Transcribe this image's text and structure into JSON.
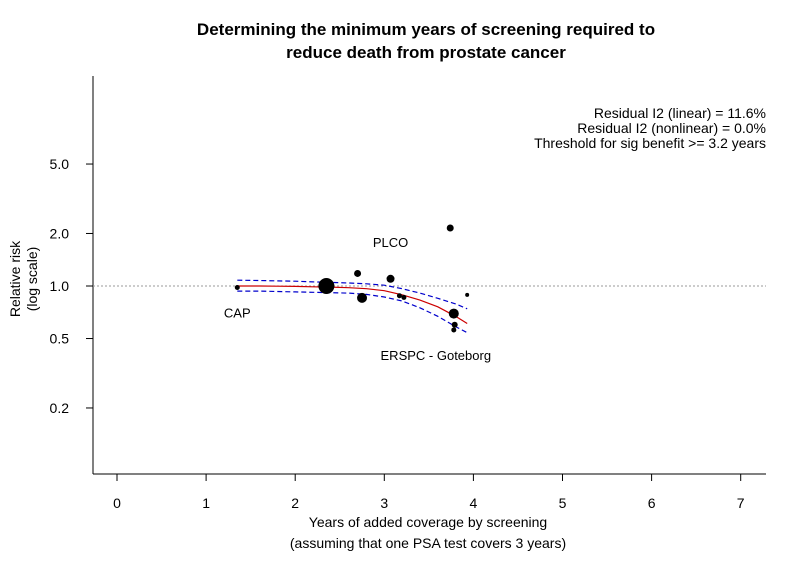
{
  "chart_data": {
    "type": "scatter",
    "title": [
      "Determining the minimum years of screening required to",
      "reduce death from prostate cancer"
    ],
    "xlabel": [
      "Years of added coverage by screening",
      "(assuming that one PSA test covers 3 years)"
    ],
    "ylabel": [
      "Relative risk",
      "(log scale)"
    ],
    "xlim": [
      -0.25,
      7.3
    ],
    "ylim": [
      0.18,
      6.3
    ],
    "yscale": "log",
    "xticks": [
      0,
      1,
      2,
      3,
      4,
      5,
      6,
      7
    ],
    "yticks": [
      0.2,
      0.5,
      1.0,
      2.0,
      5.0
    ],
    "ytick_labels": [
      "0.2",
      "0.5",
      "1.0",
      "2.0",
      "5.0"
    ],
    "reference_line": {
      "y": 1.0,
      "style": "dotted",
      "color": "#999999"
    },
    "legend_text": [
      "Residual I2 (linear) = 11.6%",
      "Residual I2 (nonlinear) = 0.0%",
      "Threshold for sig benefit >= 3.2 years"
    ],
    "legend_placement": "top-right",
    "points": [
      {
        "x": 1.35,
        "y": 0.98,
        "size": 2.5
      },
      {
        "x": 2.35,
        "y": 1.0,
        "size": 8
      },
      {
        "x": 2.7,
        "y": 1.18,
        "size": 3.5
      },
      {
        "x": 2.75,
        "y": 0.855,
        "size": 5
      },
      {
        "x": 3.07,
        "y": 1.1,
        "size": 4
      },
      {
        "x": 3.17,
        "y": 0.88,
        "size": 2.5
      },
      {
        "x": 3.22,
        "y": 0.86,
        "size": 2.5
      },
      {
        "x": 3.74,
        "y": 2.15,
        "size": 3.5
      },
      {
        "x": 3.78,
        "y": 0.695,
        "size": 5
      },
      {
        "x": 3.79,
        "y": 0.6,
        "size": 3
      },
      {
        "x": 3.78,
        "y": 0.56,
        "size": 2.5
      },
      {
        "x": 3.93,
        "y": 0.89,
        "size": 2
      }
    ],
    "series": [
      {
        "style": "solid",
        "color": "#cc0000",
        "x": [
          1.35,
          1.6,
          1.8,
          2.0,
          2.2,
          2.4,
          2.6,
          2.8,
          3.0,
          3.2,
          3.4,
          3.6,
          3.8,
          3.93
        ],
        "y": [
          1.0,
          1.0,
          0.998,
          0.995,
          0.99,
          0.985,
          0.978,
          0.965,
          0.94,
          0.89,
          0.83,
          0.76,
          0.67,
          0.61
        ]
      },
      {
        "style": "dashed",
        "color": "#0000cc",
        "x": [
          1.35,
          1.6,
          1.8,
          2.0,
          2.2,
          2.4,
          2.6,
          2.8,
          3.0,
          3.2,
          3.4,
          3.6,
          3.8,
          3.93
        ],
        "y": [
          1.08,
          1.075,
          1.07,
          1.065,
          1.055,
          1.048,
          1.04,
          1.03,
          1.01,
          0.965,
          0.91,
          0.85,
          0.79,
          0.74
        ]
      },
      {
        "style": "dashed",
        "color": "#0000cc",
        "x": [
          1.35,
          1.6,
          1.8,
          2.0,
          2.2,
          2.4,
          2.6,
          2.8,
          3.0,
          3.2,
          3.4,
          3.6,
          3.8,
          3.93
        ],
        "y": [
          0.935,
          0.935,
          0.93,
          0.925,
          0.92,
          0.915,
          0.91,
          0.895,
          0.865,
          0.82,
          0.75,
          0.67,
          0.585,
          0.54
        ]
      }
    ],
    "annotations": [
      {
        "text": "CAP",
        "x": 1.35,
        "y": 0.98,
        "position": "below"
      },
      {
        "text": "PLCO",
        "x": 3.07,
        "y": 1.1,
        "position": "above"
      },
      {
        "text": "ERSPC - Goteborg",
        "x": 3.78,
        "y": 0.56,
        "position": "below"
      }
    ]
  }
}
